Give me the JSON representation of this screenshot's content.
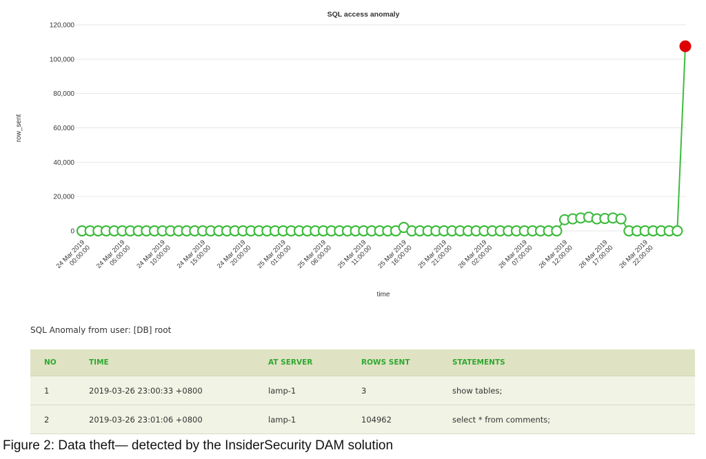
{
  "chart_data": {
    "type": "line",
    "title": "SQL access anomaly",
    "xlabel": "time",
    "ylabel": "row_sent",
    "ylim": [
      0,
      120000
    ],
    "yticks": [
      "0",
      "20,000",
      "40,000",
      "60,000",
      "80,000",
      "100,000",
      "120,000"
    ],
    "x_tick_labels": [
      [
        "24 Mar 2019",
        "00:00:00"
      ],
      [
        "24 Mar 2019",
        "05:00:00"
      ],
      [
        "24 Mar 2019",
        "10:00:00"
      ],
      [
        "24 Mar 2019",
        "15:00:00"
      ],
      [
        "24 Mar 2019",
        "20:00:00"
      ],
      [
        "25 Mar 2019",
        "01:00:00"
      ],
      [
        "25 Mar 2019",
        "06:00:00"
      ],
      [
        "25 Mar 2019",
        "11:00:00"
      ],
      [
        "25 Mar 2019",
        "16:00:00"
      ],
      [
        "25 Mar 2019",
        "21:00:00"
      ],
      [
        "26 Mar 2019",
        "02:00:00"
      ],
      [
        "26 Mar 2019",
        "07:00:00"
      ],
      [
        "26 Mar 2019",
        "12:00:00"
      ],
      [
        "26 Mar 2019",
        "17:00:00"
      ],
      [
        "26 Mar 2019",
        "22:00:00"
      ]
    ],
    "x_start": "24 Mar 2019 00:00:00",
    "x_interval_hours": 1,
    "values": [
      0,
      0,
      0,
      0,
      0,
      0,
      0,
      0,
      0,
      0,
      0,
      0,
      0,
      0,
      0,
      0,
      0,
      0,
      0,
      0,
      0,
      0,
      0,
      0,
      0,
      0,
      0,
      0,
      0,
      0,
      0,
      0,
      0,
      0,
      0,
      0,
      0,
      0,
      0,
      0,
      2000,
      0,
      0,
      0,
      0,
      0,
      0,
      0,
      0,
      0,
      0,
      0,
      0,
      0,
      0,
      0,
      0,
      0,
      0,
      0,
      6500,
      7000,
      7500,
      8000,
      7000,
      7200,
      7500,
      7000,
      0,
      0,
      0,
      0,
      0,
      0,
      0,
      107500
    ],
    "anomaly_index": 75,
    "grid": true,
    "colors": {
      "line": "#3dbb3d",
      "marker_fill": "#ffffff",
      "anomaly": "#dd0000",
      "grid": "#e6e6e6"
    }
  },
  "user_line": "SQL Anomaly from user: [DB] root",
  "table": {
    "headers": [
      "NO",
      "TIME",
      "AT SERVER",
      "ROWS SENT",
      "STATEMENTS"
    ],
    "rows": [
      [
        "1",
        "2019-03-26 23:00:33 +0800",
        "lamp-1",
        "3",
        "show tables;"
      ],
      [
        "2",
        "2019-03-26 23:01:06 +0800",
        "lamp-1",
        "104962",
        "select * from comments;"
      ]
    ]
  },
  "caption": "Figure 2: Data theft— detected by the InsiderSecurity DAM solution"
}
